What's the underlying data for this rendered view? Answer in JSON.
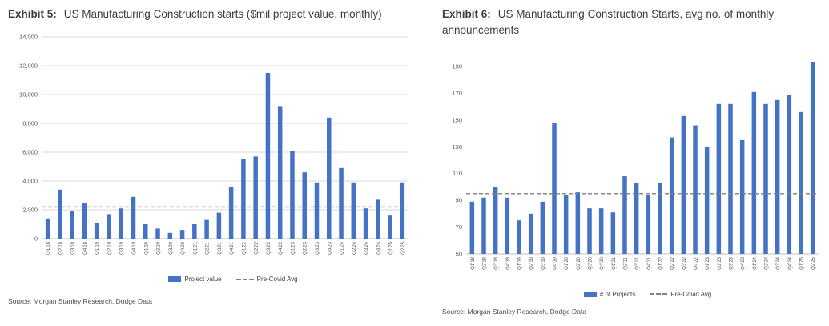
{
  "chart_data": [
    {
      "type": "bar",
      "title_bold": "Exhibit 5:",
      "title_text": "US Manufacturing Construction starts ($mil project value, monthly)",
      "categories": [
        "Q1'18",
        "Q2'18",
        "Q3'18",
        "Q4'18",
        "Q1'19",
        "Q2'19",
        "Q3'19",
        "Q4'19",
        "Q1'20",
        "Q2'20",
        "Q3'20",
        "Q4'20",
        "Q1'21",
        "Q2'21",
        "Q3'21",
        "Q4'21",
        "Q1'22",
        "Q2'22",
        "Q3'22",
        "Q4'22",
        "Q1'23",
        "Q2'23",
        "Q3'23",
        "Q4'23",
        "Q1'24",
        "Q2'24",
        "Q3'24",
        "Q4'24",
        "Q1'25",
        "Q2'25"
      ],
      "series": [
        {
          "name": "Project value",
          "values": [
            1400,
            3400,
            1900,
            2500,
            1100,
            1700,
            2100,
            2900,
            1000,
            700,
            400,
            600,
            1000,
            1300,
            1800,
            3600,
            5500,
            5700,
            11500,
            9200,
            6100,
            4600,
            3900,
            8400,
            4900,
            3900,
            2100,
            2700,
            1600,
            3900
          ]
        }
      ],
      "avg_line": {
        "label": "Pre-Covid Avg",
        "value": 2200
      },
      "xlabel": "",
      "ylabel": "",
      "ylim": [
        0,
        14000
      ],
      "yticks": [
        0,
        2000,
        4000,
        6000,
        8000,
        10000,
        12000,
        14000
      ],
      "ytick_labels": [
        "0",
        "2,000",
        "4,000",
        "6,000",
        "8,000",
        "10,000",
        "12,000",
        "14,000"
      ],
      "grid": true,
      "legend_position": "bottom",
      "bar_color": "#4472C4",
      "avg_color": "#7f7f7f",
      "source": "Source: Morgan Stanley Research, Dodge Data"
    },
    {
      "type": "bar",
      "title_bold": "Exhibit 6:",
      "title_text": "US Manufacturing Construction Starts, avg no. of monthly announcements",
      "categories": [
        "Q1'18",
        "Q2'18",
        "Q3'18",
        "Q4'18",
        "Q1'19",
        "Q2'19",
        "Q3'19",
        "Q4'19",
        "Q1'20",
        "Q2'20",
        "Q3'20",
        "Q4'20",
        "Q1'21",
        "Q2'21",
        "Q3'21",
        "Q4'21",
        "Q1'22",
        "Q2'22",
        "Q3'22",
        "Q4'22",
        "Q1'23",
        "Q2'23",
        "Q3'23",
        "Q4'23",
        "Q1'24",
        "Q2'24",
        "Q3'24",
        "Q4'24",
        "Q1'25",
        "Q2'25"
      ],
      "series": [
        {
          "name": "# of Projects",
          "values": [
            89,
            92,
            100,
            92,
            75,
            80,
            89,
            148,
            94,
            96,
            84,
            84,
            81,
            108,
            103,
            94,
            103,
            137,
            153,
            146,
            130,
            162,
            162,
            135,
            171,
            162,
            165,
            169,
            156,
            193
          ]
        }
      ],
      "avg_line": {
        "label": "Pre-Covid Avg",
        "value": 95
      },
      "xlabel": "",
      "ylabel": "",
      "ylim": [
        50,
        190
      ],
      "yticks": [
        50,
        70,
        90,
        110,
        130,
        150,
        170,
        190
      ],
      "ytick_labels": [
        "50",
        "70",
        "90",
        "110",
        "130",
        "150",
        "170",
        "190"
      ],
      "grid": false,
      "legend_position": "bottom",
      "bar_color": "#4472C4",
      "avg_color": "#7f7f7f",
      "source": "Source: Morgan Stanley Research, Dodge Data"
    }
  ]
}
